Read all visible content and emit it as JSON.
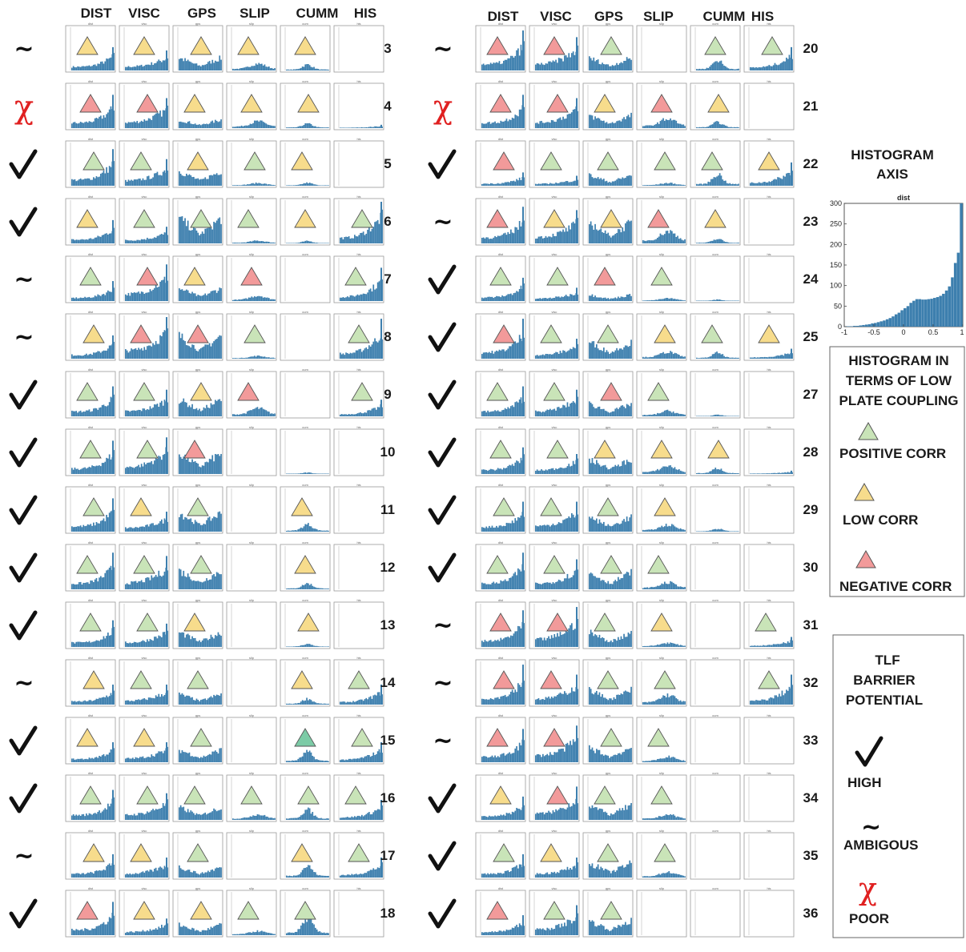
{
  "column_headers": {
    "left": [
      "DIST",
      "VISC",
      "GPS",
      "SLIP",
      "CUMM",
      "HIS"
    ],
    "right": [
      "DIST",
      "VISC",
      "GPS",
      "SLIP",
      "CUMM",
      "HIS"
    ]
  },
  "panel_titles": [
    "dist",
    "visc",
    "gps",
    "slip",
    "cum",
    "his"
  ],
  "colors": {
    "positive": "#c9e4b8",
    "low": "#f7dc8c",
    "negative": "#f29a9a",
    "positive_alt": "#7ccba6",
    "bar": "#3d7fae",
    "poor_mark": "#e02020"
  },
  "rows_left": [
    {
      "number": "3",
      "rating": "ambiguous",
      "cells": [
        "low",
        "low",
        "low",
        "low",
        "low",
        "none"
      ],
      "fill": [
        0.35,
        0.3,
        0.3,
        0.25,
        0.2,
        0.0
      ]
    },
    {
      "number": "4",
      "rating": "poor",
      "cells": [
        "negative",
        "negative",
        "low",
        "low",
        "low",
        "none"
      ],
      "fill": [
        0.5,
        0.45,
        0.2,
        0.25,
        0.15,
        0.05
      ]
    },
    {
      "number": "5",
      "rating": "high",
      "cells": [
        "positive",
        "positive",
        "low",
        "positive",
        "low",
        "none"
      ],
      "fill": [
        0.55,
        0.4,
        0.35,
        0.1,
        0.1,
        0.0
      ]
    },
    {
      "number": "6",
      "rating": "high",
      "cells": [
        "low",
        "positive",
        "positive",
        "positive",
        "low",
        "positive"
      ],
      "fill": [
        0.35,
        0.25,
        0.6,
        0.1,
        0.08,
        0.65
      ]
    },
    {
      "number": "7",
      "rating": "ambiguous",
      "cells": [
        "positive",
        "negative",
        "low",
        "negative",
        "none",
        "positive"
      ],
      "fill": [
        0.3,
        0.55,
        0.3,
        0.2,
        0.0,
        0.5
      ]
    },
    {
      "number": "8",
      "rating": "ambiguous",
      "cells": [
        "low",
        "negative",
        "negative",
        "positive",
        "none",
        "positive"
      ],
      "fill": [
        0.35,
        0.65,
        0.55,
        0.1,
        0.0,
        0.6
      ]
    },
    {
      "number": "9",
      "rating": "high",
      "cells": [
        "positive",
        "positive",
        "low",
        "negative",
        "none",
        "positive"
      ],
      "fill": [
        0.45,
        0.4,
        0.4,
        0.3,
        0.0,
        0.25
      ]
    },
    {
      "number": "10",
      "rating": "high",
      "cells": [
        "positive",
        "positive",
        "negative",
        "none",
        "none",
        "none"
      ],
      "fill": [
        0.5,
        0.55,
        0.5,
        0.0,
        0.05,
        0.0
      ]
    },
    {
      "number": "11",
      "rating": "high",
      "cells": [
        "positive",
        "low",
        "positive",
        "none",
        "low",
        "none"
      ],
      "fill": [
        0.5,
        0.3,
        0.45,
        0.0,
        0.25,
        0.0
      ]
    },
    {
      "number": "12",
      "rating": "high",
      "cells": [
        "positive",
        "positive",
        "positive",
        "none",
        "low",
        "none"
      ],
      "fill": [
        0.55,
        0.5,
        0.45,
        0.0,
        0.2,
        0.0
      ]
    },
    {
      "number": "13",
      "rating": "high",
      "cells": [
        "positive",
        "positive",
        "low",
        "none",
        "low",
        "none"
      ],
      "fill": [
        0.4,
        0.35,
        0.35,
        0.0,
        0.1,
        0.0
      ]
    },
    {
      "number": "14",
      "rating": "ambiguous",
      "cells": [
        "low",
        "positive",
        "positive",
        "none",
        "low",
        "positive"
      ],
      "fill": [
        0.3,
        0.3,
        0.25,
        0.0,
        0.2,
        0.3
      ]
    },
    {
      "number": "15",
      "rating": "high",
      "cells": [
        "low",
        "low",
        "positive",
        "none",
        "positive_alt",
        "positive"
      ],
      "fill": [
        0.3,
        0.3,
        0.3,
        0.0,
        0.35,
        0.3
      ]
    },
    {
      "number": "16",
      "rating": "high",
      "cells": [
        "positive",
        "positive",
        "positive",
        "positive",
        "positive",
        "positive"
      ],
      "fill": [
        0.45,
        0.4,
        0.3,
        0.2,
        0.35,
        0.3
      ]
    },
    {
      "number": "17",
      "rating": "ambiguous",
      "cells": [
        "low",
        "low",
        "positive",
        "none",
        "low",
        "positive"
      ],
      "fill": [
        0.35,
        0.3,
        0.25,
        0.0,
        0.4,
        0.3
      ]
    },
    {
      "number": "18",
      "rating": "high",
      "cells": [
        "negative",
        "low",
        "low",
        "positive",
        "positive",
        "none"
      ],
      "fill": [
        0.5,
        0.25,
        0.25,
        0.15,
        0.6,
        0.0
      ]
    }
  ],
  "rows_right": [
    {
      "number": "20",
      "rating": "ambiguous",
      "cells": [
        "negative",
        "negative",
        "positive",
        "none",
        "positive",
        "positive"
      ],
      "fill": [
        0.6,
        0.5,
        0.3,
        0.0,
        0.35,
        0.35
      ]
    },
    {
      "number": "21",
      "rating": "poor",
      "cells": [
        "negative",
        "negative",
        "low",
        "negative",
        "low",
        "none"
      ],
      "fill": [
        0.5,
        0.45,
        0.3,
        0.35,
        0.2,
        0.0
      ]
    },
    {
      "number": "22",
      "rating": "high",
      "cells": [
        "negative",
        "positive",
        "positive",
        "positive",
        "positive",
        "low"
      ],
      "fill": [
        0.2,
        0.15,
        0.25,
        0.1,
        0.4,
        0.35
      ]
    },
    {
      "number": "23",
      "rating": "ambiguous",
      "cells": [
        "negative",
        "low",
        "low",
        "negative",
        "low",
        "none"
      ],
      "fill": [
        0.55,
        0.5,
        0.5,
        0.45,
        0.15,
        0.0
      ]
    },
    {
      "number": "24",
      "rating": "high",
      "cells": [
        "positive",
        "positive",
        "negative",
        "positive",
        "none",
        "none"
      ],
      "fill": [
        0.35,
        0.2,
        0.15,
        0.1,
        0.05,
        0.0
      ]
    },
    {
      "number": "25",
      "rating": "high",
      "cells": [
        "negative",
        "positive",
        "positive",
        "low",
        "positive",
        "low"
      ],
      "fill": [
        0.6,
        0.3,
        0.4,
        0.25,
        0.2,
        0.15
      ]
    },
    {
      "number": "27",
      "rating": "high",
      "cells": [
        "positive",
        "positive",
        "negative",
        "positive",
        "none",
        "none"
      ],
      "fill": [
        0.45,
        0.4,
        0.3,
        0.2,
        0.05,
        0.0
      ]
    },
    {
      "number": "28",
      "rating": "high",
      "cells": [
        "positive",
        "positive",
        "low",
        "low",
        "low",
        "none"
      ],
      "fill": [
        0.4,
        0.3,
        0.35,
        0.3,
        0.2,
        0.05
      ]
    },
    {
      "number": "29",
      "rating": "high",
      "cells": [
        "positive",
        "positive",
        "positive",
        "low",
        "none",
        "none"
      ],
      "fill": [
        0.45,
        0.45,
        0.35,
        0.25,
        0.1,
        0.0
      ]
    },
    {
      "number": "30",
      "rating": "high",
      "cells": [
        "positive",
        "positive",
        "positive",
        "positive",
        "none",
        "none"
      ],
      "fill": [
        0.55,
        0.45,
        0.4,
        0.25,
        0.0,
        0.0
      ]
    },
    {
      "number": "31",
      "rating": "ambiguous",
      "cells": [
        "negative",
        "negative",
        "positive",
        "low",
        "none",
        "positive"
      ],
      "fill": [
        0.55,
        0.6,
        0.35,
        0.15,
        0.0,
        0.15
      ]
    },
    {
      "number": "32",
      "rating": "ambiguous",
      "cells": [
        "negative",
        "negative",
        "positive",
        "positive",
        "none",
        "positive"
      ],
      "fill": [
        0.6,
        0.45,
        0.35,
        0.35,
        0.0,
        0.45
      ]
    },
    {
      "number": "33",
      "rating": "ambiguous",
      "cells": [
        "negative",
        "negative",
        "positive",
        "positive",
        "none",
        "none"
      ],
      "fill": [
        0.5,
        0.55,
        0.35,
        0.2,
        0.0,
        0.0
      ]
    },
    {
      "number": "34",
      "rating": "high",
      "cells": [
        "low",
        "negative",
        "positive",
        "positive",
        "none",
        "none"
      ],
      "fill": [
        0.35,
        0.5,
        0.35,
        0.2,
        0.0,
        0.0
      ]
    },
    {
      "number": "35",
      "rating": "high",
      "cells": [
        "positive",
        "low",
        "positive",
        "positive",
        "none",
        "none"
      ],
      "fill": [
        0.35,
        0.3,
        0.35,
        0.2,
        0.0,
        0.0
      ]
    },
    {
      "number": "36",
      "rating": "high",
      "cells": [
        "negative",
        "positive",
        "positive",
        "none",
        "none",
        "none"
      ],
      "fill": [
        0.3,
        0.45,
        0.35,
        0.0,
        0.0,
        0.0
      ]
    }
  ],
  "histogram_axis_box": {
    "title_line1": "HISTOGRAM",
    "title_line2": "AXIS",
    "chart_title": "dist",
    "y_ticks": [
      "300",
      "250",
      "200",
      "150",
      "100",
      "50",
      "0"
    ],
    "x_ticks": [
      "-1",
      "-0.5",
      "0",
      "0.5",
      "1"
    ],
    "chart_data": {
      "type": "bar",
      "title": "dist",
      "xlim": [
        -1,
        1
      ],
      "ylim": [
        0,
        300
      ],
      "x": [
        -0.975,
        -0.925,
        -0.875,
        -0.825,
        -0.775,
        -0.725,
        -0.675,
        -0.625,
        -0.575,
        -0.525,
        -0.475,
        -0.425,
        -0.375,
        -0.325,
        -0.275,
        -0.225,
        -0.175,
        -0.125,
        -0.075,
        -0.025,
        0.025,
        0.075,
        0.125,
        0.175,
        0.225,
        0.275,
        0.325,
        0.375,
        0.425,
        0.475,
        0.525,
        0.575,
        0.625,
        0.675,
        0.725,
        0.775,
        0.825,
        0.875,
        0.925,
        0.975
      ],
      "values": [
        1,
        1,
        1,
        2,
        2,
        3,
        4,
        5,
        6,
        8,
        9,
        11,
        13,
        15,
        18,
        21,
        25,
        30,
        34,
        40,
        45,
        50,
        58,
        63,
        67,
        67,
        66,
        66,
        67,
        68,
        70,
        72,
        75,
        80,
        88,
        98,
        120,
        155,
        180,
        300
      ]
    }
  },
  "coupling_legend": {
    "title_line1": "HISTOGRAM  IN",
    "title_line2": "TERMS OF LOW",
    "title_line3": "PLATE COUPLING",
    "positive_label": "POSITIVE CORR",
    "low_label": "LOW CORR",
    "negative_label": "NEGATIVE CORR"
  },
  "tlf_legend": {
    "title_line1": "TLF",
    "title_line2": "BARRIER",
    "title_line3": "POTENTIAL",
    "high_label": "HIGH",
    "ambiguous_label": "AMBIGOUS",
    "poor_label": "POOR"
  },
  "marks": {
    "ambiguous": "~",
    "poor": "χ"
  }
}
